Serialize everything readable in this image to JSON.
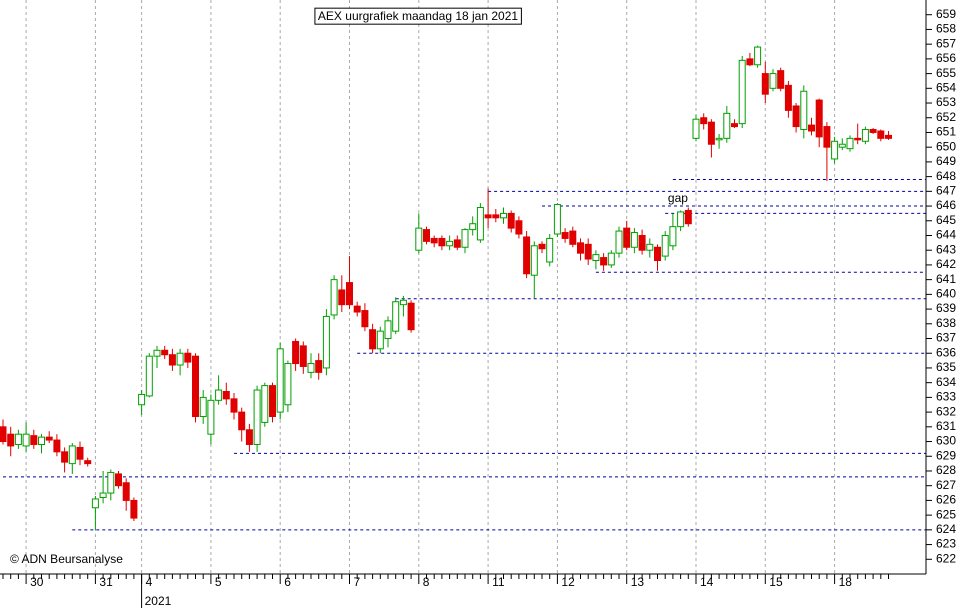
{
  "chart_data": {
    "type": "candlestick",
    "title": "AEX uurgrafiek maandag 18 jan 2021",
    "source": "© ADN Beursanalyse",
    "year_label": {
      "text": "2021",
      "index": 18
    },
    "annotations": [
      {
        "text": "gap",
        "index": 87,
        "value": 646.5
      }
    ],
    "up_color": "#00a000",
    "down_color": "#e00000",
    "level_color": "#0000a0",
    "ylim": [
      621,
      660
    ],
    "yticks": [
      622,
      623,
      624,
      625,
      626,
      627,
      628,
      629,
      630,
      631,
      632,
      633,
      634,
      635,
      636,
      637,
      638,
      639,
      640,
      641,
      642,
      643,
      644,
      645,
      646,
      647,
      648,
      649,
      650,
      651,
      652,
      653,
      654,
      655,
      656,
      657,
      658,
      659
    ],
    "categories": [
      null,
      null,
      null,
      "30",
      null,
      null,
      null,
      null,
      null,
      null,
      null,
      null,
      "31",
      null,
      null,
      null,
      null,
      null,
      "4",
      null,
      null,
      null,
      null,
      null,
      null,
      null,
      null,
      "5",
      null,
      null,
      null,
      null,
      null,
      null,
      null,
      null,
      "6",
      null,
      null,
      null,
      null,
      null,
      null,
      null,
      null,
      "7",
      null,
      null,
      null,
      null,
      null,
      null,
      null,
      null,
      "8",
      null,
      null,
      null,
      null,
      null,
      null,
      null,
      null,
      "11",
      null,
      null,
      null,
      null,
      null,
      null,
      null,
      null,
      "12",
      null,
      null,
      null,
      null,
      null,
      null,
      null,
      null,
      "13",
      null,
      null,
      null,
      null,
      null,
      null,
      null,
      null,
      "14",
      null,
      null,
      null,
      null,
      null,
      null,
      null,
      null,
      "15",
      null,
      null,
      null,
      null,
      null,
      null,
      null,
      null,
      "18",
      null,
      null,
      null,
      null,
      null,
      null,
      null
    ],
    "open": [
      631,
      630.5,
      629.8,
      629.7,
      630.4,
      629.8,
      630.3,
      630.1,
      629.3,
      628.5,
      629.6,
      628.7,
      625.5,
      626.2,
      626.5,
      627.8,
      627.2,
      626,
      632.5,
      633.1,
      635.8,
      636.2,
      635.9,
      635.2,
      636,
      635.8,
      631.7,
      630.5,
      632.8,
      633.4,
      632.9,
      632,
      630.8,
      629.8,
      631.3,
      633.8,
      632,
      632.5,
      636.8,
      636.5,
      634.7,
      635.5,
      635,
      638.6,
      640.3,
      640.8,
      639.2,
      638.9,
      637.6,
      636.3,
      637,
      637.5,
      639.3,
      639.4,
      643,
      644.4,
      643.8,
      643.8,
      643.3,
      643.7,
      643.2,
      644.4,
      643.7,
      645.4,
      645.4,
      645.2,
      645.5,
      645,
      643.9,
      641.3,
      643.4,
      642.2,
      644.1,
      644.2,
      644.3,
      643.5,
      643.4,
      642.3,
      642.5,
      642,
      642.8,
      644.5,
      643.2,
      644,
      643,
      643.2,
      642.6,
      643.3,
      644.6,
      645.7,
      650.6,
      652,
      651.7,
      650.5,
      650.6,
      651.6,
      651.6,
      656,
      655.6,
      655,
      654,
      655.2,
      654.2,
      652.8,
      651.2,
      651.5,
      653.2,
      651.4,
      649.2,
      650,
      649.9,
      650.6,
      650.4,
      651.2,
      651.1,
      650.8
    ],
    "high": [
      631.5,
      631,
      630.8,
      631.3,
      630.8,
      630.5,
      630.7,
      630.5,
      629.6,
      629.9,
      630,
      628.9,
      626.3,
      628,
      628.1,
      628,
      627.5,
      626.2,
      633.5,
      636,
      636.5,
      636.5,
      636.3,
      636.3,
      636.3,
      636,
      633.5,
      633.2,
      634.5,
      634,
      633.3,
      632.3,
      631.2,
      633.8,
      634,
      634,
      636.7,
      635.5,
      637,
      636.8,
      636,
      636,
      639,
      641.3,
      641.3,
      642.6,
      639.5,
      639.4,
      638,
      637.8,
      638.5,
      639.8,
      639.9,
      639.6,
      645.5,
      644.6,
      644,
      644,
      644,
      644,
      644.5,
      645.3,
      646.2,
      647.2,
      645.8,
      645.9,
      645.7,
      645.3,
      644.3,
      643.6,
      643.6,
      644.1,
      646.2,
      644.5,
      644.6,
      643.8,
      643.8,
      643,
      642.8,
      643,
      644.6,
      645,
      644.5,
      644.4,
      643.8,
      643.4,
      644.3,
      645.5,
      645.7,
      645.9,
      652.2,
      652.3,
      651.9,
      650.9,
      652.8,
      651.9,
      656.2,
      656.4,
      656.9,
      655.8,
      655.3,
      655.4,
      654.5,
      653,
      654.2,
      652,
      653.3,
      651.7,
      650.7,
      650.6,
      650.8,
      651.6,
      651.4,
      651.3,
      651.2,
      651.1
    ],
    "low": [
      629.8,
      629,
      629.5,
      629.3,
      629.5,
      629.2,
      629.9,
      629,
      627.9,
      627.8,
      628.4,
      628.3,
      624,
      625.8,
      626,
      626.8,
      625.3,
      624.6,
      631.8,
      633,
      635,
      635.6,
      634.8,
      634.5,
      635,
      631.3,
      631.2,
      629.8,
      632.5,
      632.5,
      631.5,
      630,
      629.3,
      629.3,
      631,
      631.3,
      631.5,
      632,
      634.8,
      634.6,
      634.3,
      634.2,
      634.5,
      638.3,
      638.8,
      639,
      638.5,
      637.5,
      636,
      636,
      636.4,
      637.3,
      638.5,
      637.4,
      642.8,
      643.4,
      643.2,
      643,
      643,
      643,
      642.8,
      644,
      643.5,
      644.5,
      644.9,
      644.8,
      644.2,
      643.8,
      641.1,
      639.7,
      642.8,
      641.9,
      643.9,
      643.5,
      643.2,
      642.3,
      642,
      641.7,
      641.6,
      641.8,
      642.5,
      643,
      642.8,
      642.7,
      642.5,
      641.6,
      642.3,
      643,
      644.3,
      644.6,
      650.4,
      651.2,
      649.3,
      649.9,
      650.3,
      651.3,
      651.3,
      655.5,
      655.4,
      653,
      653.8,
      653.8,
      652,
      651,
      650.6,
      650.8,
      650,
      647.7,
      648.9,
      649.8,
      649.7,
      650.2,
      650.2,
      650.9,
      650.4,
      650.5
    ],
    "close": [
      630,
      629.7,
      630.5,
      630.5,
      629.8,
      630.3,
      630.1,
      629.3,
      628.6,
      629.7,
      628.8,
      628.5,
      626.1,
      626.5,
      627.9,
      627,
      626,
      624.8,
      633.2,
      635.8,
      636.2,
      635.9,
      635.2,
      636,
      635.4,
      631.7,
      633,
      632.8,
      633.5,
      632.9,
      632,
      630.8,
      629.8,
      633.5,
      633.8,
      631.7,
      636.3,
      635.3,
      635.3,
      635.1,
      635.3,
      634.7,
      638.5,
      641,
      639.3,
      639.3,
      638.8,
      637.8,
      636.3,
      637.5,
      638.2,
      639.5,
      639.6,
      637.6,
      644.5,
      643.6,
      643.5,
      643.3,
      643.6,
      643.2,
      644.4,
      644.8,
      645.9,
      645.2,
      645.2,
      645.5,
      644.5,
      644.1,
      641.4,
      643.3,
      643.1,
      643.8,
      646.1,
      643.8,
      643.4,
      642.8,
      642.4,
      642.7,
      642,
      642.8,
      644.3,
      643.2,
      644.2,
      643,
      643.4,
      642.3,
      644,
      644.6,
      645.6,
      644.8,
      651.9,
      651.6,
      650.2,
      650.6,
      652.3,
      651.4,
      655.9,
      655.6,
      656.8,
      653.6,
      655,
      654,
      652.5,
      651.4,
      653.8,
      651.1,
      650.7,
      650,
      650.4,
      650.2,
      650.6,
      650.5,
      651.2,
      651,
      650.6,
      650.6
    ],
    "levels": [
      {
        "value": 647.8,
        "from": 87
      },
      {
        "value": 647,
        "from": 63
      },
      {
        "value": 646,
        "from": 70
      },
      {
        "value": 645.5,
        "from": 86
      },
      {
        "value": 641.5,
        "from": 77
      },
      {
        "value": 639.7,
        "from": 51
      },
      {
        "value": 636,
        "from": 46
      },
      {
        "value": 629.2,
        "from": 30
      },
      {
        "value": 627.6,
        "from": 0
      },
      {
        "value": 624,
        "from": 9
      }
    ]
  }
}
